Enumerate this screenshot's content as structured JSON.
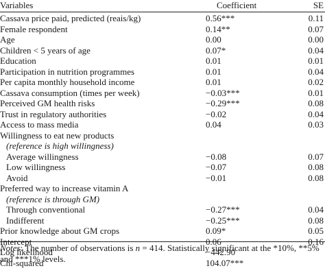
{
  "header": {
    "variables": "Variables",
    "coefficient": "Coefficient",
    "se": "SE"
  },
  "rows": [
    {
      "label": "Cassava price paid, predicted (reais/kg)",
      "coef": "0.56***",
      "se": "0.11",
      "indent": false,
      "italic": false
    },
    {
      "label": "Female respondent",
      "coef": "0.14**",
      "se": "0.07",
      "indent": false,
      "italic": false
    },
    {
      "label": "Age",
      "coef": "0.00",
      "se": "0.00",
      "indent": false,
      "italic": false
    },
    {
      "label": "Children  < 5 years of age",
      "coef": "0.07*",
      "se": "0.04",
      "indent": false,
      "italic": false
    },
    {
      "label": "Education",
      "coef": "0.01",
      "se": "0.01",
      "indent": false,
      "italic": false
    },
    {
      "label": "Participation in nutrition programmes",
      "coef": "0.01",
      "se": "0.04",
      "indent": false,
      "italic": false
    },
    {
      "label": "Per capita monthly household income",
      "coef": "0.01",
      "se": "0.02",
      "indent": false,
      "italic": false
    },
    {
      "label": "Cassava consumption (times per week)",
      "coef": "−0.03***",
      "se": "0.01",
      "indent": false,
      "italic": false
    },
    {
      "label": "Perceived GM health risks",
      "coef": "−0.29***",
      "se": "0.08",
      "indent": false,
      "italic": false
    },
    {
      "label": "Trust in regulatory authorities",
      "coef": "−0.02",
      "se": "0.04",
      "indent": false,
      "italic": false
    },
    {
      "label": "Access to mass media",
      "coef": "0.04",
      "se": "0.03",
      "indent": false,
      "italic": false
    },
    {
      "label": "Willingness to eat new products",
      "coef": "",
      "se": "",
      "indent": false,
      "italic": false
    },
    {
      "label": "(reference is high willingness)",
      "coef": "",
      "se": "",
      "indent": true,
      "italic": true
    },
    {
      "label": "Average willingness",
      "coef": "−0.08",
      "se": "0.07",
      "indent": true,
      "italic": false
    },
    {
      "label": "Low willingness",
      "coef": "−0.07",
      "se": "0.08",
      "indent": true,
      "italic": false
    },
    {
      "label": "Avoid",
      "coef": "−0.01",
      "se": "0.08",
      "indent": true,
      "italic": false
    },
    {
      "label": "Preferred way to increase vitamin A",
      "coef": "",
      "se": "",
      "indent": false,
      "italic": false
    },
    {
      "label": "(reference is through GM)",
      "coef": "",
      "se": "",
      "indent": true,
      "italic": true
    },
    {
      "label": "Through conventional",
      "coef": "−0.27***",
      "se": "0.04",
      "indent": true,
      "italic": false
    },
    {
      "label": "Indifferent",
      "coef": "−0.25***",
      "se": "0.08",
      "indent": true,
      "italic": false
    },
    {
      "label": "Prior knowledge about GM crops",
      "coef": "0.09*",
      "se": "0.05",
      "indent": false,
      "italic": false
    },
    {
      "label": "Intercept",
      "coef": "0.06",
      "se": "0.16",
      "indent": false,
      "italic": false
    },
    {
      "label": "Log likelihood",
      "coef": "−442.90",
      "se": "",
      "indent": false,
      "italic": false
    },
    {
      "label": "Chi-squared",
      "coef": "104.07***",
      "se": "",
      "indent": false,
      "italic": false
    }
  ],
  "notes": {
    "label": "Notes",
    "text_before_n": ": The number of observations is ",
    "n_symbol": "n",
    "text_after_n": " = 414. Statistically significant at the *10%, **5% and ***1% levels."
  }
}
